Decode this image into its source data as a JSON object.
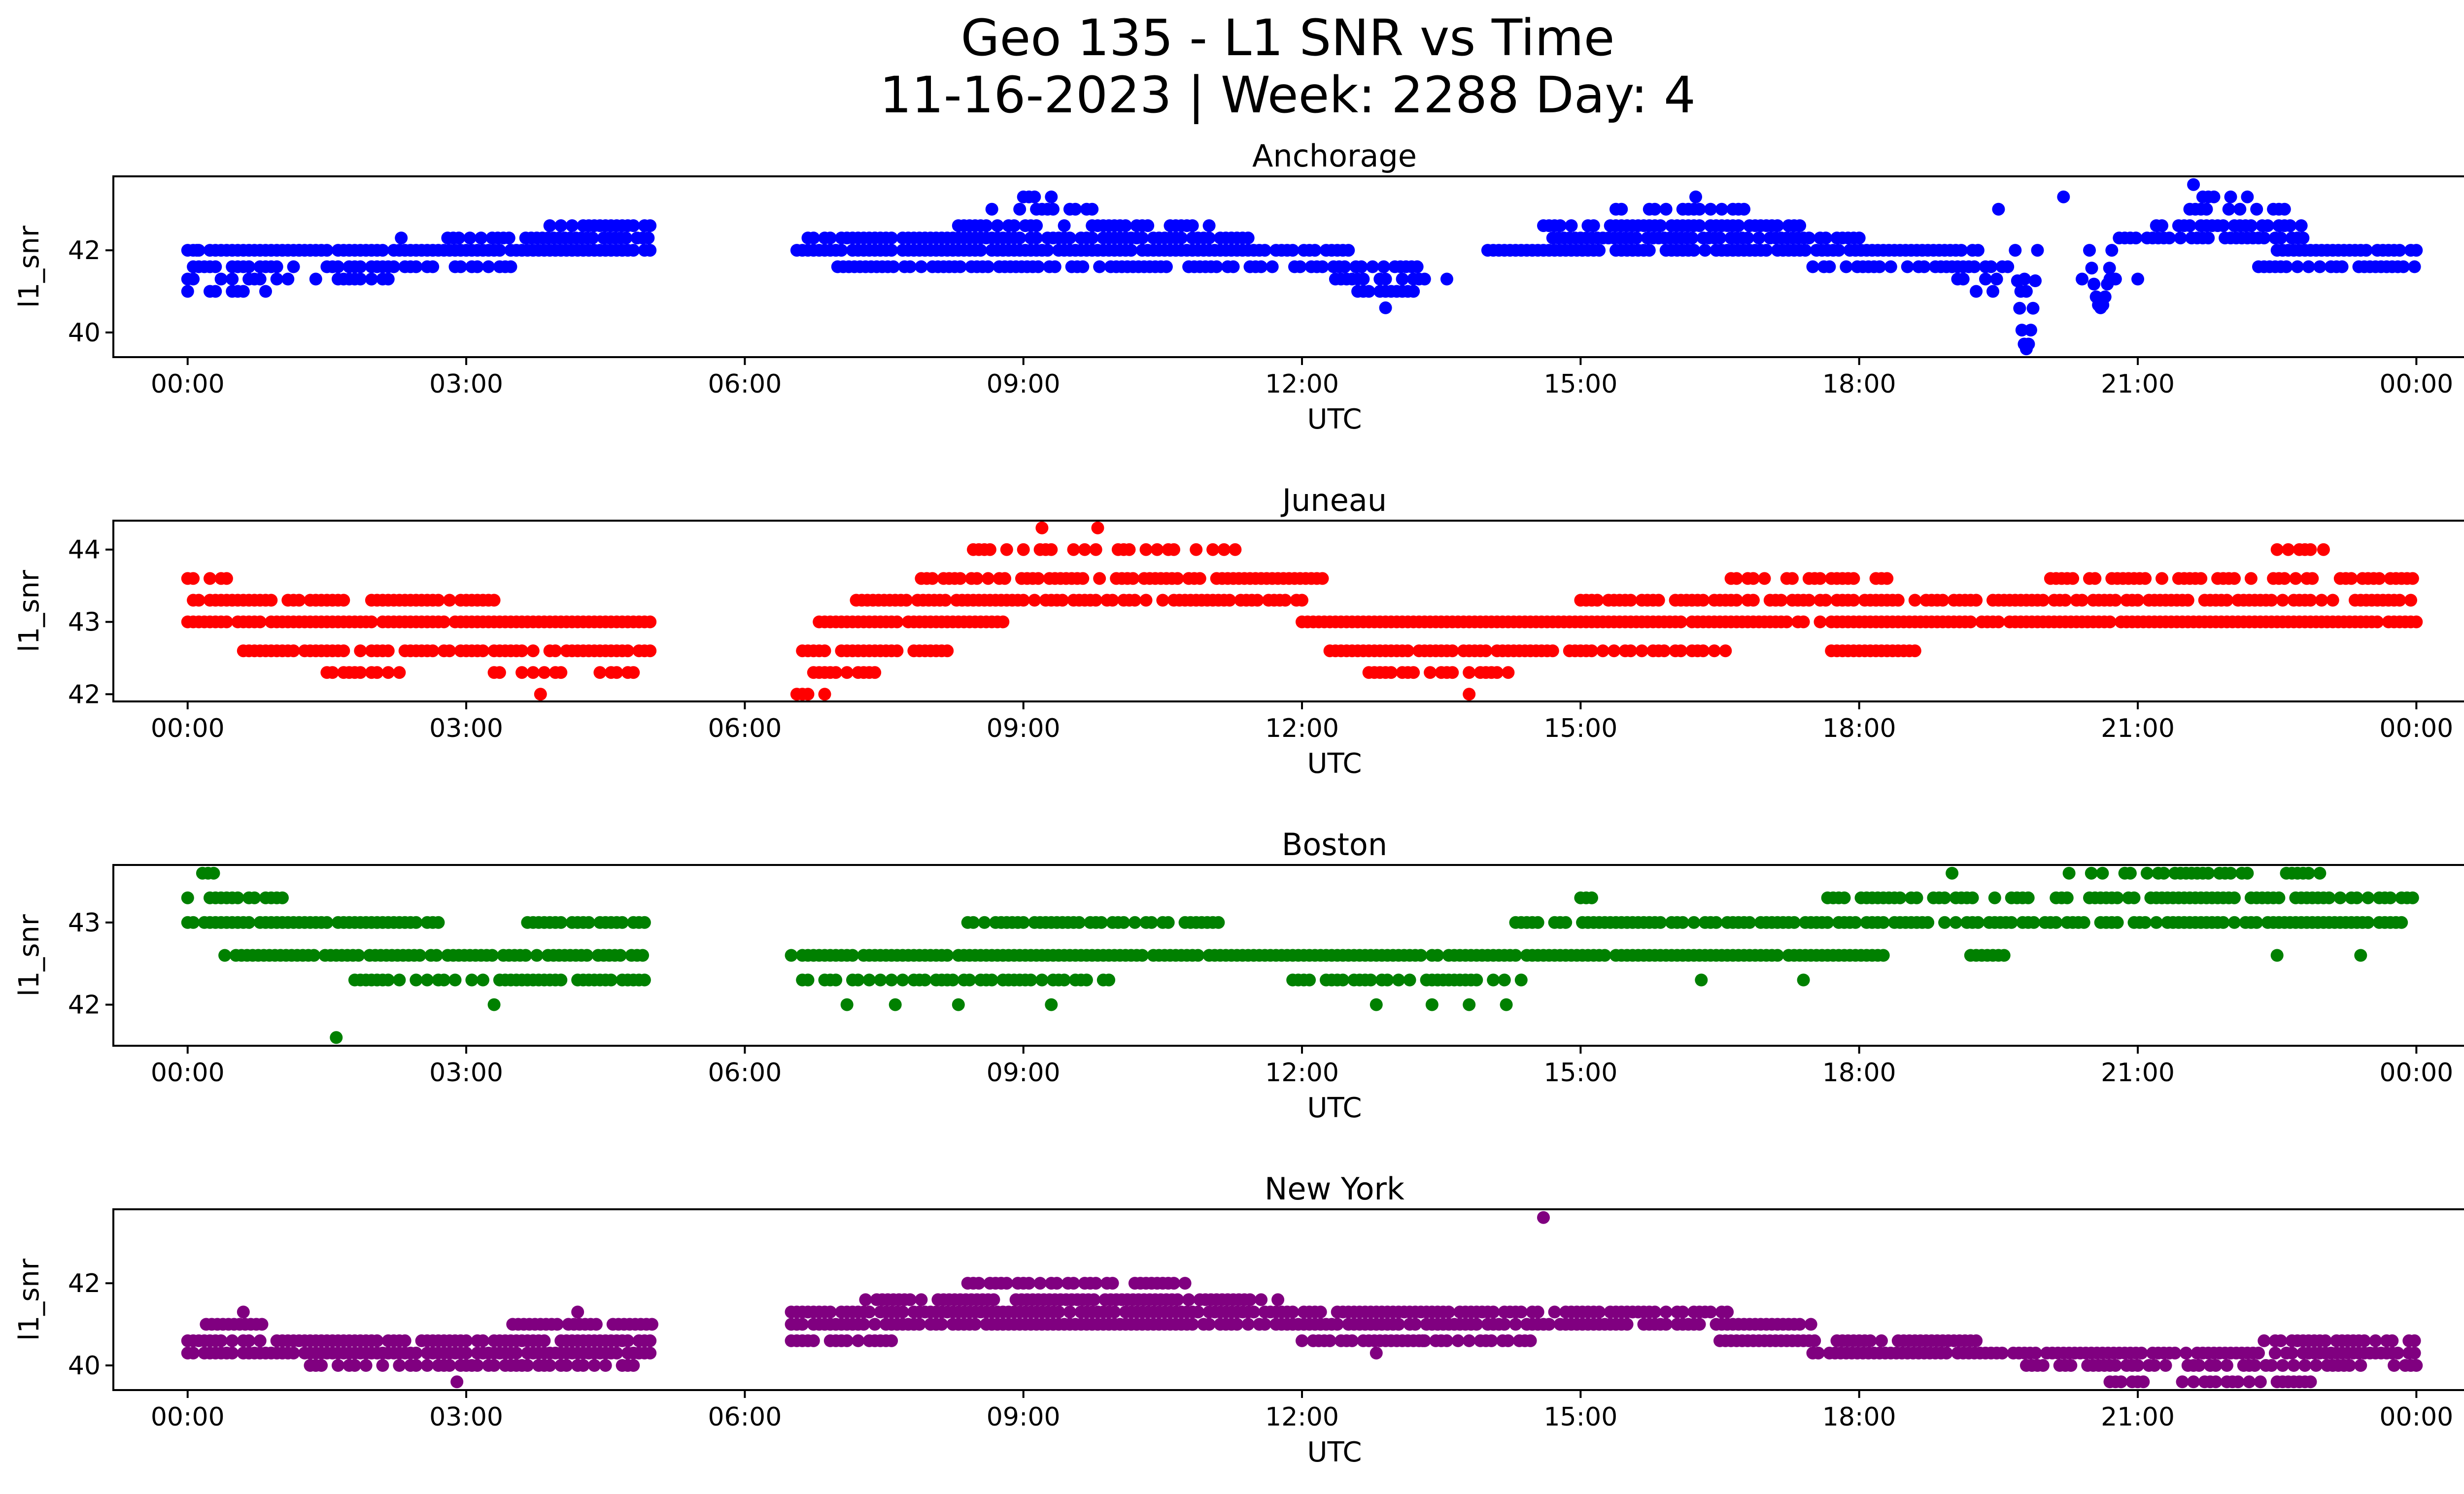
{
  "figure": {
    "title_line1": "Geo 135 - L1 SNR vs Time",
    "title_line2": "11-16-2023 | Week: 2288 Day: 4"
  },
  "chart_data": [
    {
      "type": "scatter",
      "title": "Anchorage",
      "xlabel": "UTC",
      "ylabel": "l1_snr",
      "color": "#0000ff",
      "x_range": [
        "23:48",
        "24:28"
      ],
      "xlim_hours": [
        -0.8,
        25.5
      ],
      "ylim": [
        39.4,
        43.8
      ],
      "x_ticks": [
        "00:00",
        "03:00",
        "06:00",
        "09:00",
        "12:00",
        "15:00",
        "18:00",
        "21:00",
        "00:00"
      ],
      "y_ticks": [
        40,
        42
      ],
      "band_rows": [
        {
          "y": 42.0,
          "ranges": [
            [
              0.0,
              5.0
            ],
            [
              6.5,
              12.5
            ],
            [
              14.0,
              19.3
            ],
            [
              22.5,
              24.0
            ]
          ],
          "density": 0.9
        },
        {
          "y": 41.6,
          "ranges": [
            [
              0.0,
              3.5
            ],
            [
              7.0,
              13.3
            ],
            [
              17.5,
              19.6
            ],
            [
              22.3,
              24.0
            ]
          ],
          "density": 0.7
        },
        {
          "y": 41.3,
          "ranges": [
            [
              0.0,
              2.2
            ],
            [
              12.3,
              13.6
            ],
            [
              19.0,
              19.8
            ],
            [
              20.4,
              21.0
            ]
          ],
          "density": 0.6
        },
        {
          "y": 41.0,
          "ranges": [
            [
              0.0,
              1.0
            ],
            [
              12.6,
              13.2
            ],
            [
              19.2,
              19.8
            ]
          ],
          "density": 0.6
        },
        {
          "y": 42.3,
          "ranges": [
            [
              2.8,
              5.0
            ],
            [
              6.5,
              11.5
            ],
            [
              14.7,
              18.0
            ],
            [
              20.8,
              22.8
            ]
          ],
          "density": 0.8
        },
        {
          "y": 42.6,
          "ranges": [
            [
              3.9,
              5.0
            ],
            [
              8.3,
              11.0
            ],
            [
              14.6,
              17.4
            ],
            [
              21.2,
              22.8
            ]
          ],
          "density": 0.7
        },
        {
          "y": 43.0,
          "ranges": [
            [
              8.6,
              9.8
            ],
            [
              15.2,
              16.8
            ],
            [
              21.5,
              22.6
            ]
          ],
          "density": 0.5
        },
        {
          "y": 43.3,
          "ranges": [
            [
              9.0,
              9.3
            ],
            [
              16.0,
              16.6
            ],
            [
              21.7,
              22.3
            ]
          ],
          "density": 0.4
        }
      ],
      "dips": [
        {
          "center": 19.8,
          "width": 0.12,
          "min": 39.6
        },
        {
          "center": 20.6,
          "width": 0.12,
          "min": 40.6
        }
      ],
      "extra_points": [
        [
          0.1,
          42.0
        ],
        [
          1.2,
          42.0
        ],
        [
          2.3,
          42.3
        ],
        [
          12.9,
          40.6
        ],
        [
          20.2,
          43.3
        ],
        [
          21.6,
          43.6
        ],
        [
          19.5,
          43.0
        ]
      ]
    },
    {
      "type": "scatter",
      "title": "Juneau",
      "xlabel": "UTC",
      "ylabel": "l1_snr",
      "color": "#ff0000",
      "xlim_hours": [
        -0.8,
        25.5
      ],
      "ylim": [
        41.9,
        44.4
      ],
      "x_ticks": [
        "00:00",
        "03:00",
        "06:00",
        "09:00",
        "12:00",
        "15:00",
        "18:00",
        "21:00",
        "00:00"
      ],
      "y_ticks": [
        42,
        43,
        44
      ],
      "band_rows": [
        {
          "y": 43.0,
          "ranges": [
            [
              0.0,
              5.0
            ],
            [
              6.8,
              8.8
            ],
            [
              12.0,
              24.0
            ]
          ],
          "density": 0.95
        },
        {
          "y": 43.3,
          "ranges": [
            [
              0.0,
              3.3
            ],
            [
              7.2,
              12.0
            ],
            [
              15.0,
              24.0
            ]
          ],
          "density": 0.8
        },
        {
          "y": 43.6,
          "ranges": [
            [
              0.0,
              0.5
            ],
            [
              7.9,
              12.3
            ],
            [
              16.5,
              18.3
            ],
            [
              20.0,
              24.0
            ]
          ],
          "density": 0.7
        },
        {
          "y": 42.6,
          "ranges": [
            [
              0.6,
              5.0
            ],
            [
              6.5,
              8.2
            ],
            [
              12.3,
              16.6
            ],
            [
              17.7,
              18.6
            ]
          ],
          "density": 0.8
        },
        {
          "y": 42.3,
          "ranges": [
            [
              1.5,
              2.3
            ],
            [
              3.3,
              5.0
            ],
            [
              6.5,
              7.4
            ],
            [
              12.6,
              14.3
            ]
          ],
          "density": 0.6
        },
        {
          "y": 44.0,
          "ranges": [
            [
              8.4,
              11.3
            ],
            [
              22.5,
              22.9
            ]
          ],
          "density": 0.6
        },
        {
          "y": 42.0,
          "ranges": [
            [
              6.5,
              7.0
            ]
          ],
          "density": 0.6
        }
      ],
      "dips": [],
      "extra_points": [
        [
          3.8,
          42.0
        ],
        [
          13.8,
          42.0
        ],
        [
          9.2,
          44.3
        ],
        [
          9.8,
          44.3
        ],
        [
          23.0,
          44.0
        ]
      ]
    },
    {
      "type": "scatter",
      "title": "Boston",
      "xlabel": "UTC",
      "ylabel": "l1_snr",
      "color": "#008000",
      "xlim_hours": [
        -0.8,
        25.5
      ],
      "ylim": [
        41.5,
        43.7
      ],
      "x_ticks": [
        "00:00",
        "03:00",
        "06:00",
        "09:00",
        "12:00",
        "15:00",
        "18:00",
        "21:00",
        "00:00"
      ],
      "y_ticks": [
        42,
        43
      ],
      "band_rows": [
        {
          "y": 43.0,
          "ranges": [
            [
              0.0,
              2.8
            ],
            [
              3.6,
              5.0
            ],
            [
              8.4,
              11.2
            ],
            [
              14.3,
              24.0
            ]
          ],
          "density": 0.85
        },
        {
          "y": 43.3,
          "ranges": [
            [
              0.0,
              1.1
            ],
            [
              15.0,
              15.2
            ],
            [
              17.6,
              24.0
            ]
          ],
          "density": 0.75
        },
        {
          "y": 43.6,
          "ranges": [
            [
              0.1,
              0.3
            ],
            [
              20.2,
              22.2
            ],
            [
              22.6,
              23.0
            ]
          ],
          "density": 0.6
        },
        {
          "y": 42.6,
          "ranges": [
            [
              0.4,
              5.0
            ],
            [
              6.5,
              18.3
            ],
            [
              19.2,
              19.6
            ]
          ],
          "density": 0.95
        },
        {
          "y": 42.3,
          "ranges": [
            [
              1.8,
              5.0
            ],
            [
              6.5,
              10.0
            ],
            [
              11.9,
              14.4
            ]
          ],
          "density": 0.7
        },
        {
          "y": 42.0,
          "ranges": [
            [
              7.5,
              7.7
            ]
          ],
          "density": 0.5
        }
      ],
      "dips": [],
      "extra_points": [
        [
          1.6,
          41.6
        ],
        [
          3.3,
          42.0
        ],
        [
          7.1,
          42.0
        ],
        [
          8.3,
          42.0
        ],
        [
          9.3,
          42.0
        ],
        [
          12.8,
          42.0
        ],
        [
          13.4,
          42.0
        ],
        [
          13.8,
          42.0
        ],
        [
          14.2,
          42.0
        ],
        [
          17.4,
          42.3
        ],
        [
          16.3,
          42.3
        ],
        [
          22.5,
          42.6
        ],
        [
          23.4,
          42.6
        ],
        [
          19.0,
          43.6
        ]
      ]
    },
    {
      "type": "scatter",
      "title": "New York",
      "xlabel": "UTC",
      "ylabel": "l1_snr",
      "color": "#800080",
      "xlim_hours": [
        -0.8,
        25.5
      ],
      "ylim": [
        39.4,
        43.8
      ],
      "x_ticks": [
        "00:00",
        "03:00",
        "06:00",
        "09:00",
        "12:00",
        "15:00",
        "18:00",
        "21:00",
        "00:00"
      ],
      "y_ticks": [
        40,
        42
      ],
      "band_rows": [
        {
          "y": 40.3,
          "ranges": [
            [
              0.0,
              5.0
            ],
            [
              17.5,
              24.0
            ]
          ],
          "density": 0.9
        },
        {
          "y": 40.6,
          "ranges": [
            [
              0.0,
              5.0
            ],
            [
              6.5,
              7.6
            ],
            [
              12.0,
              14.5
            ],
            [
              16.5,
              19.3
            ],
            [
              22.3,
              24.0
            ]
          ],
          "density": 0.85
        },
        {
          "y": 41.0,
          "ranges": [
            [
              0.2,
              0.8
            ],
            [
              3.5,
              5.0
            ],
            [
              6.5,
              17.5
            ]
          ],
          "density": 0.9
        },
        {
          "y": 41.3,
          "ranges": [
            [
              6.5,
              16.6
            ]
          ],
          "density": 0.85
        },
        {
          "y": 41.6,
          "ranges": [
            [
              7.3,
              11.8
            ]
          ],
          "density": 0.8
        },
        {
          "y": 42.0,
          "ranges": [
            [
              8.4,
              11.2
            ]
          ],
          "density": 0.6
        },
        {
          "y": 40.0,
          "ranges": [
            [
              1.2,
              4.8
            ],
            [
              19.8,
              24.0
            ]
          ],
          "density": 0.6
        },
        {
          "y": 39.6,
          "ranges": [
            [
              20.7,
              22.9
            ]
          ],
          "density": 0.7
        }
      ],
      "dips": [],
      "extra_points": [
        [
          2.9,
          39.6
        ],
        [
          14.6,
          43.6
        ],
        [
          12.8,
          40.3
        ],
        [
          13.3,
          40.6
        ],
        [
          4.2,
          41.3
        ],
        [
          0.6,
          41.3
        ]
      ]
    }
  ]
}
